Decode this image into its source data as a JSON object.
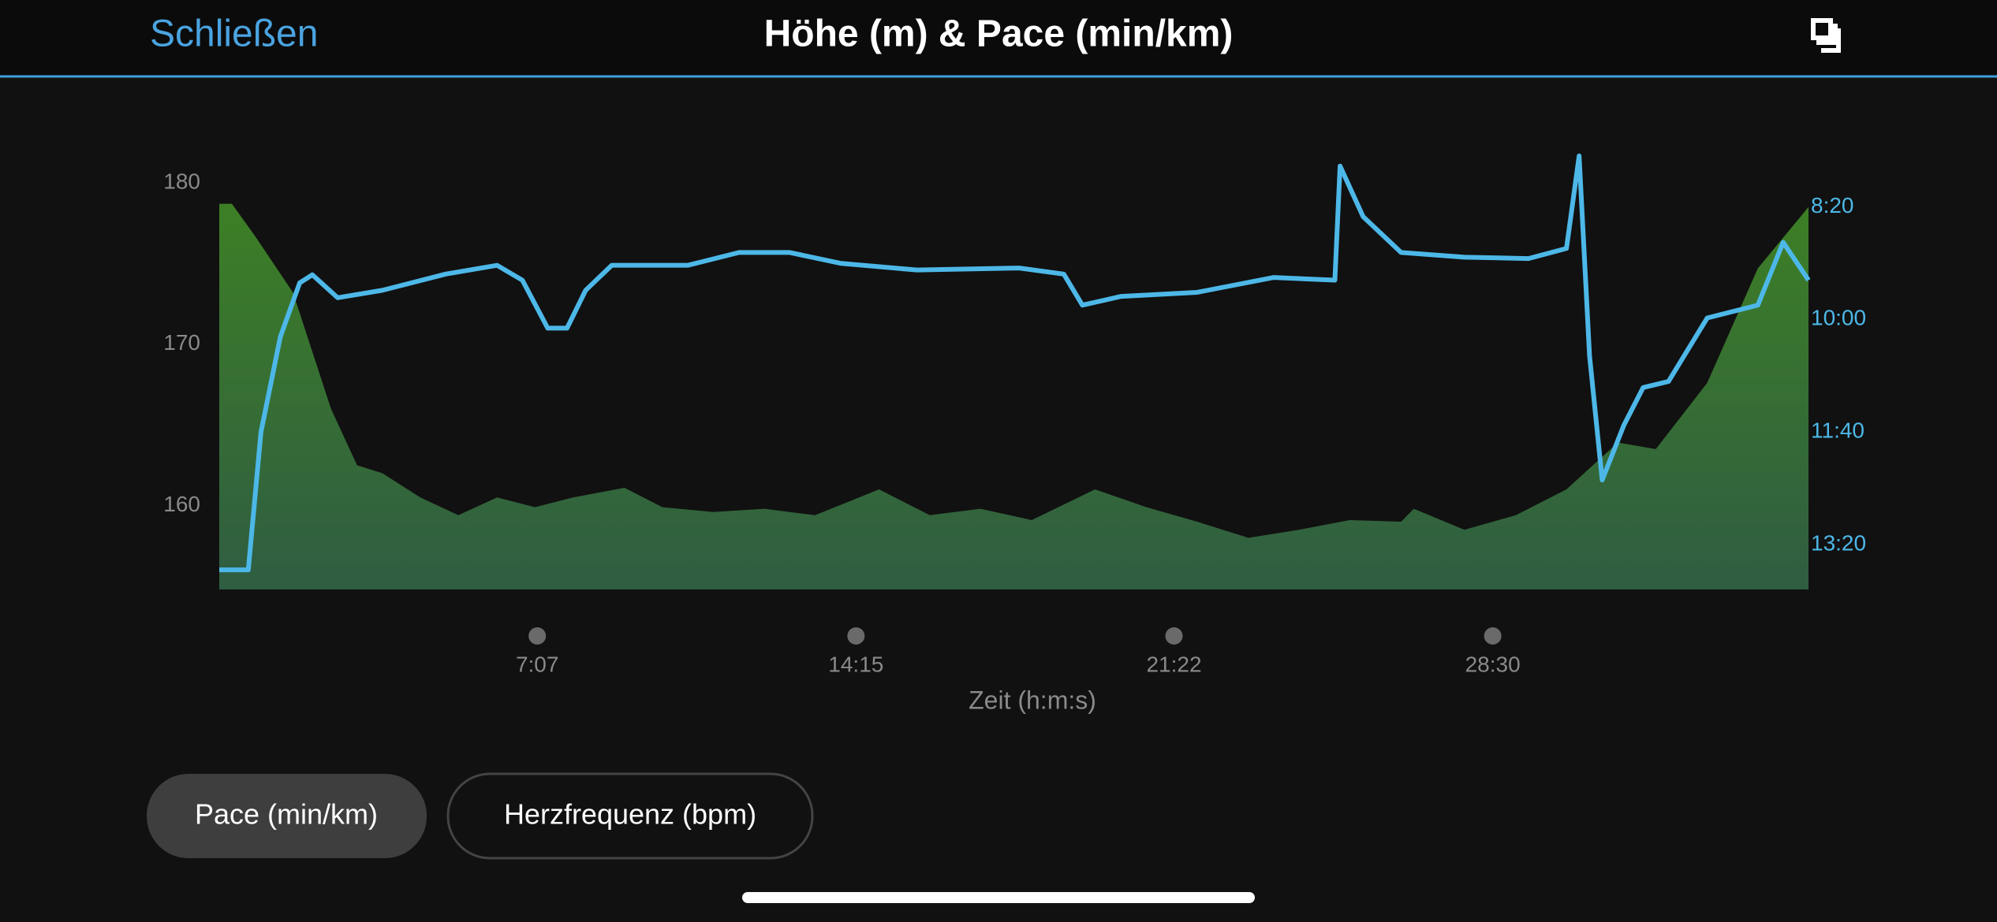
{
  "header": {
    "close": "Schließen",
    "title": "Höhe (m) & Pace (min/km)"
  },
  "chart_data": {
    "type": "area-line",
    "xlabel": "Zeit (h:m:s)",
    "xlim": [
      0,
      2134
    ],
    "xticks": [
      {
        "value": 427,
        "label": "7:07"
      },
      {
        "value": 855,
        "label": "14:15"
      },
      {
        "value": 1282,
        "label": "21:22"
      },
      {
        "value": 1710,
        "label": "28:30"
      }
    ],
    "ylim": [
      154.8,
      182
    ],
    "yticks": [
      160,
      170,
      180
    ],
    "y2lim": [
      14,
      7.5
    ],
    "y2ticks": [
      {
        "value": 8.3333,
        "label": "8:20"
      },
      {
        "value": 10,
        "label": "10:00"
      },
      {
        "value": 11.6667,
        "label": "11:40"
      },
      {
        "value": 13.3333,
        "label": "13:20"
      }
    ],
    "series": [
      {
        "kind": "area",
        "color": "#3b7a2c",
        "x": [
          0,
          17,
          48,
          99,
          150,
          185,
          219,
          270,
          321,
          373,
          424,
          475,
          544,
          595,
          663,
          732,
          800,
          886,
          954,
          1022,
          1091,
          1176,
          1245,
          1313,
          1382,
          1450,
          1518,
          1587,
          1604,
          1672,
          1741,
          1809,
          1878,
          1929,
          1998,
          2066,
          2134
        ],
        "values": [
          178.7,
          178.7,
          176.7,
          173.2,
          166,
          162.5,
          162,
          160.5,
          159.4,
          160.5,
          159.9,
          160.5,
          161.1,
          159.9,
          159.6,
          159.8,
          159.4,
          161,
          159.4,
          159.8,
          159.1,
          161,
          159.9,
          159,
          158,
          158.5,
          159.1,
          159,
          159.8,
          158.5,
          159.4,
          161,
          163.9,
          163.5,
          167.6,
          174.7,
          178.5
        ]
      },
      {
        "kind": "line",
        "axis": "y2",
        "color": "#4db8e8",
        "x": [
          0,
          39,
          56,
          82,
          108,
          125,
          159,
          219,
          304,
          373,
          407,
          441,
          467,
          492,
          527,
          629,
          698,
          766,
          834,
          937,
          1074,
          1134,
          1159,
          1211,
          1313,
          1416,
          1498,
          1505,
          1536,
          1587,
          1672,
          1758,
          1809,
          1826,
          1840,
          1857,
          1886,
          1912,
          1946,
          1998,
          2066,
          2100,
          2134
        ],
        "values": [
          13.71,
          13.71,
          11.67,
          10.26,
          9.46,
          9.34,
          9.68,
          9.57,
          9.33,
          9.2,
          9.42,
          10.13,
          10.13,
          9.57,
          9.2,
          9.2,
          9.01,
          9.01,
          9.17,
          9.27,
          9.24,
          9.33,
          9.79,
          9.66,
          9.6,
          9.38,
          9.42,
          7.73,
          8.48,
          9.01,
          9.08,
          9.1,
          8.95,
          7.58,
          10.54,
          12.38,
          11.57,
          11.01,
          10.92,
          9.98,
          9.79,
          8.86,
          9.42
        ]
      }
    ]
  },
  "buttons": [
    "Pace (min/km)",
    "Herzfrequenz (bpm)"
  ]
}
